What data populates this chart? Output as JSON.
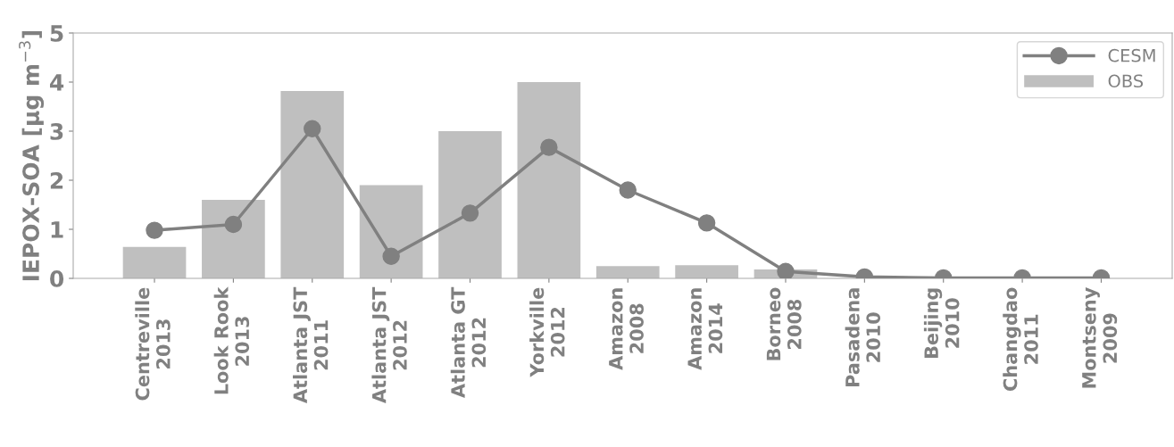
{
  "chart_data": {
    "type": "bar",
    "ylabel": "IEPOX-SOA [μg m$^{−3}$]",
    "categories": [
      "Centreville\n2013",
      "Look Rook\n2013",
      "Atlanta JST\n2011",
      "Atlanta JST\n2012",
      "Atlanta GT\n2012",
      "Yorkville\n2012",
      "Amazon\n2008",
      "Amazon\n2014",
      "Borneo\n2008",
      "Pasadena\n2010",
      "Beijing\n2010",
      "Changdao\n2011",
      "Montseny\n2009"
    ],
    "series": [
      {
        "name": "CESM",
        "type": "line",
        "color": "#808080",
        "values": [
          0.98,
          1.1,
          3.05,
          0.45,
          1.33,
          2.67,
          1.8,
          1.13,
          0.14,
          0.03,
          0.01,
          0.01,
          0.01
        ]
      },
      {
        "name": "OBS",
        "color": "#bfbfbf",
        "values": [
          0.64,
          1.6,
          3.82,
          1.9,
          3.0,
          4.0,
          0.25,
          0.27,
          0.18,
          0,
          0,
          0,
          0
        ]
      }
    ],
    "ylim": [
      0,
      5
    ],
    "yticks": [
      0,
      1,
      2,
      3,
      4,
      5
    ],
    "grid": false,
    "legend": "top right",
    "marker": "circle",
    "line_style": "solid"
  }
}
